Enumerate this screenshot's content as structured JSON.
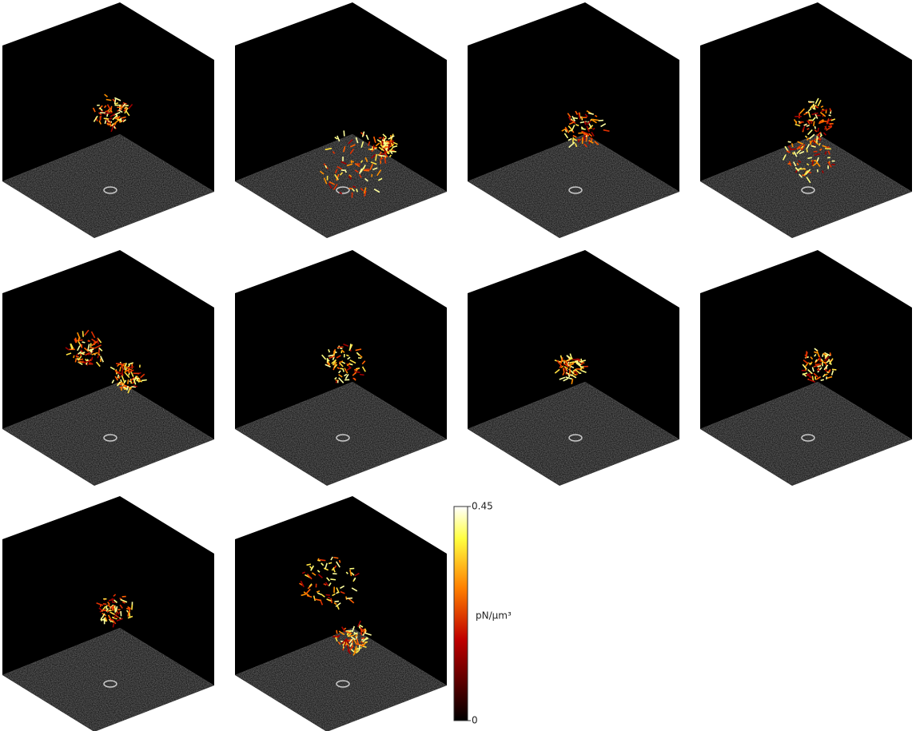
{
  "colorbar": {
    "label": "pN/μm³",
    "lim": [
      0,
      0.45
    ],
    "ticks": [
      0,
      0.45
    ],
    "colormap": "hot"
  }
}
